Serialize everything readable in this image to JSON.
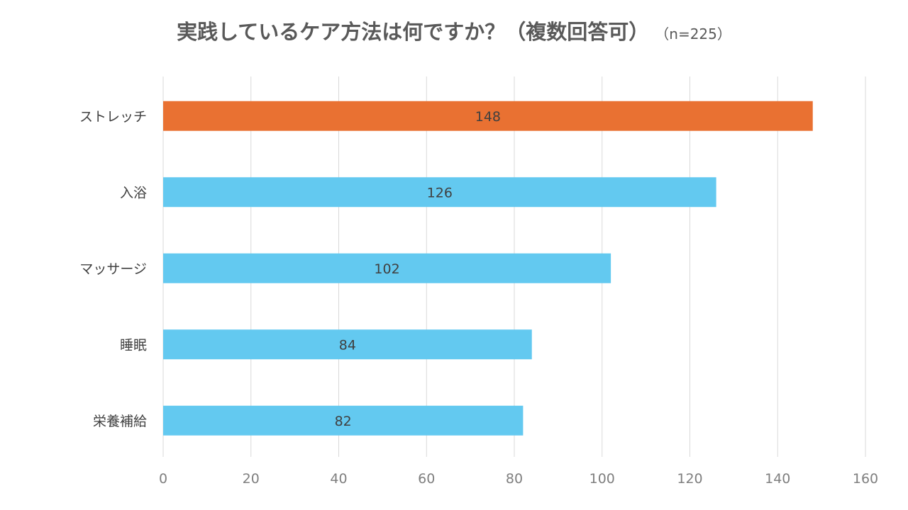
{
  "chart_data": {
    "type": "bar",
    "orientation": "horizontal",
    "title": "実践しているケア方法は何ですか？（複数回答可）",
    "subtitle": "（n=225）",
    "categories": [
      "ストレッチ",
      "入浴",
      "マッサージ",
      "睡眠",
      "栄養補給"
    ],
    "values": [
      148,
      126,
      102,
      84,
      82
    ],
    "data_labels": [
      "148",
      "126",
      "102",
      "84",
      "82"
    ],
    "highlight_index": 0,
    "xlim": [
      0,
      160
    ],
    "xticks": [
      0,
      20,
      40,
      60,
      80,
      100,
      120,
      140,
      160
    ],
    "xtick_labels": [
      "0",
      "20",
      "40",
      "60",
      "80",
      "100",
      "120",
      "140",
      "160"
    ],
    "xlabel": "",
    "ylabel": "",
    "grid": "vertical",
    "legend": "none",
    "colors": {
      "bar": "#63c9f0",
      "highlight": "#e97132",
      "grid": "#d9d9d9"
    }
  }
}
